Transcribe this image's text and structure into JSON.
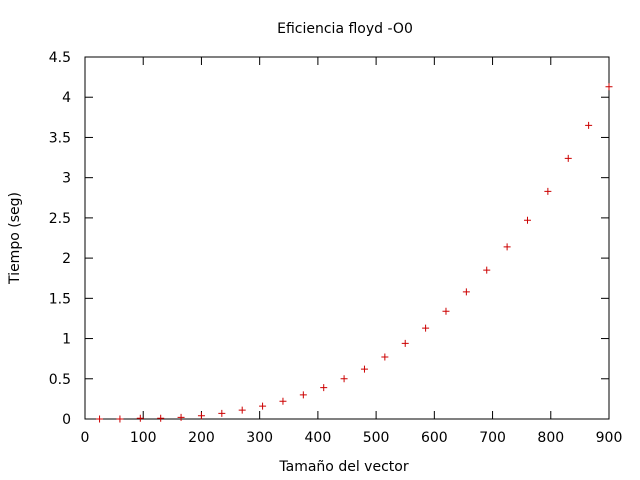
{
  "chart_data": {
    "type": "scatter",
    "title": "Eficiencia floyd -O0",
    "xlabel": "Tamaño del vector",
    "ylabel": "Tiempo (seg)",
    "xlim": [
      0,
      900
    ],
    "ylim": [
      0,
      4.5
    ],
    "x_ticks": [
      0,
      100,
      200,
      300,
      400,
      500,
      600,
      700,
      800,
      900
    ],
    "y_ticks": [
      0,
      0.5,
      1,
      1.5,
      2,
      2.5,
      3,
      3.5,
      4,
      4.5
    ],
    "x_tick_labels": [
      "0",
      "100",
      "200",
      "300",
      "400",
      "500",
      "600",
      "700",
      "800",
      "900"
    ],
    "y_tick_labels": [
      "0",
      "0.5",
      "1",
      "1.5",
      "2",
      "2.5",
      "3",
      "3.5",
      "4",
      "4.5"
    ],
    "grid": false,
    "marker": "plus",
    "marker_color": "#cc0000",
    "axis_color": "#000000",
    "series": [
      {
        "x": [
          25,
          60,
          95,
          130,
          165,
          200,
          235,
          270,
          305,
          340,
          375,
          410,
          445,
          480,
          515,
          550,
          585,
          620,
          655,
          690,
          725,
          760,
          795,
          830,
          865,
          900
        ],
        "y": [
          0.0,
          0.0,
          0.01,
          0.01,
          0.02,
          0.04,
          0.07,
          0.11,
          0.16,
          0.22,
          0.3,
          0.39,
          0.5,
          0.62,
          0.77,
          0.94,
          1.13,
          1.34,
          1.58,
          1.85,
          2.14,
          2.47,
          2.83,
          3.24,
          3.65,
          4.13
        ]
      }
    ]
  }
}
